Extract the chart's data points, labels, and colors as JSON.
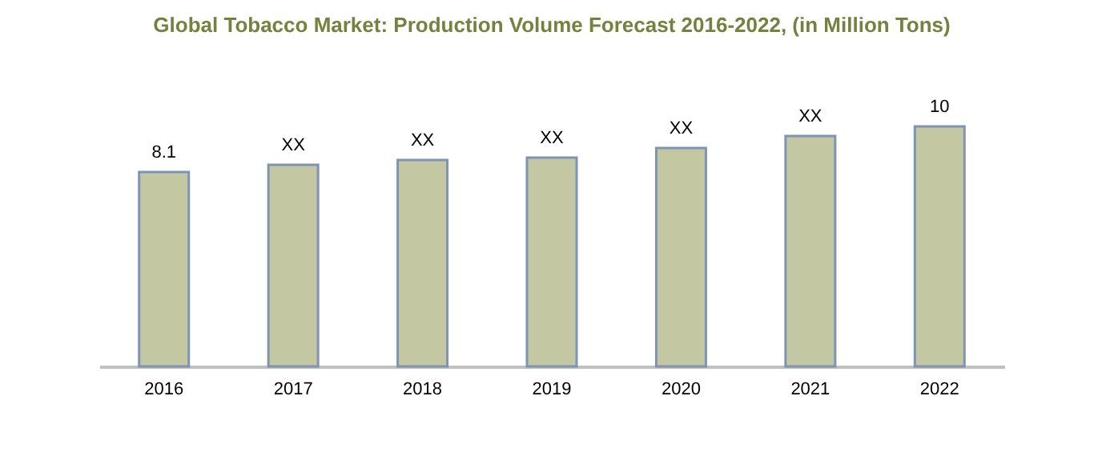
{
  "chart_data": {
    "type": "bar",
    "title": "Global Tobacco Market: Production Volume Forecast 2016-2022, (in Million Tons)",
    "categories": [
      "2016",
      "2017",
      "2018",
      "2019",
      "2020",
      "2021",
      "2022"
    ],
    "values": [
      8.1,
      8.4,
      8.6,
      8.7,
      9.1,
      9.6,
      10
    ],
    "value_labels": [
      "8.1",
      "XX",
      "XX",
      "XX",
      "XX",
      "XX",
      "10"
    ],
    "color": "#c3c8a2",
    "grid": false
  }
}
